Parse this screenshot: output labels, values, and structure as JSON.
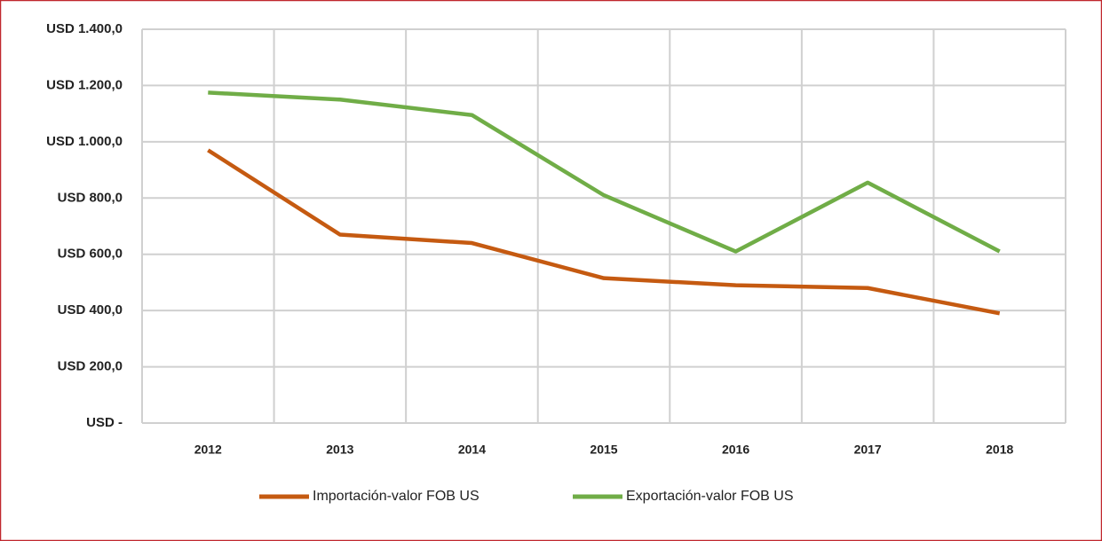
{
  "chart_data": {
    "type": "line",
    "categories": [
      "2012",
      "2013",
      "2014",
      "2015",
      "2016",
      "2017",
      "2018"
    ],
    "series": [
      {
        "name": "Importación-valor FOB US",
        "color": "#c55a11",
        "values": [
          970,
          670,
          640,
          515,
          490,
          480,
          390
        ]
      },
      {
        "name": "Exportación-valor FOB US",
        "color": "#70ad47",
        "values": [
          1175,
          1150,
          1095,
          810,
          610,
          855,
          610
        ]
      }
    ],
    "ylim": [
      0,
      1400
    ],
    "yticks": [
      {
        "value": 0,
        "label": "USD -"
      },
      {
        "value": 200,
        "label": "USD 200,0"
      },
      {
        "value": 400,
        "label": "USD 400,0"
      },
      {
        "value": 600,
        "label": "USD 600,0"
      },
      {
        "value": 800,
        "label": "USD 800,0"
      },
      {
        "value": 1000,
        "label": "USD 1.000,0"
      },
      {
        "value": 1200,
        "label": "USD 1.200,0"
      },
      {
        "value": 1400,
        "label": "USD 1.400,0"
      }
    ],
    "grid": true,
    "legend": "bottom"
  }
}
